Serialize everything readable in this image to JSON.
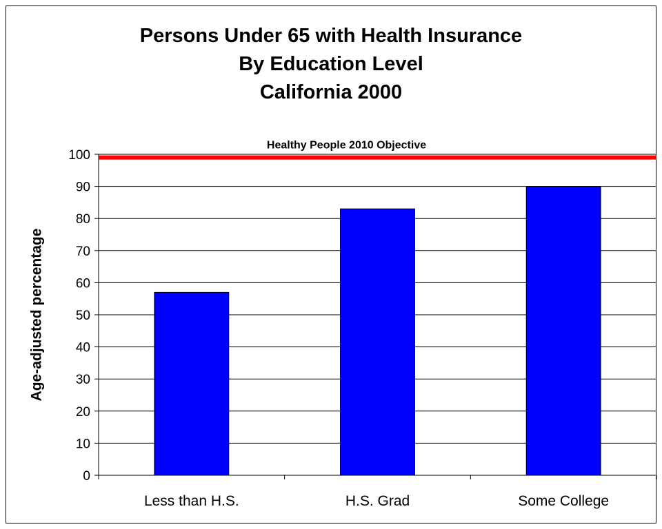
{
  "chart_data": {
    "type": "bar",
    "title": [
      "Persons Under 65 with Health Insurance",
      "By Education Level",
      "California 2000"
    ],
    "xlabel": "",
    "ylabel": "Age-adjusted percentage",
    "categories": [
      "Less than H.S.",
      "H.S. Grad",
      "Some College"
    ],
    "values": [
      57,
      83,
      90
    ],
    "ylim": [
      0,
      100
    ],
    "yticks": [
      0,
      10,
      20,
      30,
      40,
      50,
      60,
      70,
      80,
      90,
      100
    ],
    "grid": true,
    "bar_color": "#0000FF",
    "reference_line": {
      "label": "Healthy People 2010 Objective",
      "value": 99,
      "color": "#FF0000"
    }
  }
}
